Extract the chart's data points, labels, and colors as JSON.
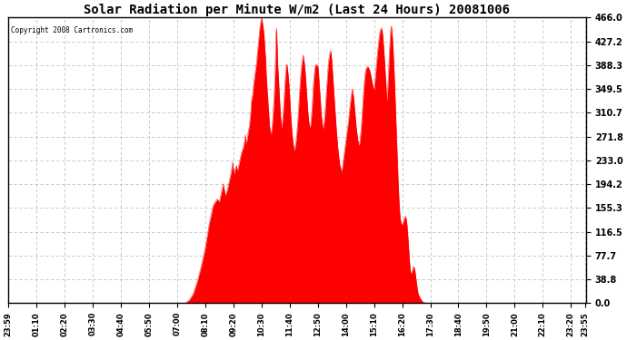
{
  "title": "Solar Radiation per Minute W/m2 (Last 24 Hours) 20081006",
  "copyright": "Copyright 2008 Cartronics.com",
  "fill_color": "#FF0000",
  "line_color": "#FF0000",
  "background_color": "#FFFFFF",
  "grid_color": "#C0C0C0",
  "dashed_line_color": "#FF0000",
  "yticks": [
    0.0,
    38.8,
    77.7,
    116.5,
    155.3,
    194.2,
    233.0,
    271.8,
    310.7,
    349.5,
    388.3,
    427.2,
    466.0
  ],
  "ylim": [
    0.0,
    466.0
  ],
  "x_labels": [
    "23:59",
    "01:10",
    "02:20",
    "03:30",
    "04:40",
    "05:50",
    "07:00",
    "08:10",
    "09:20",
    "10:30",
    "11:40",
    "12:50",
    "14:00",
    "15:10",
    "16:20",
    "17:30",
    "18:40",
    "19:50",
    "21:00",
    "22:10",
    "23:20",
    "23:55"
  ]
}
